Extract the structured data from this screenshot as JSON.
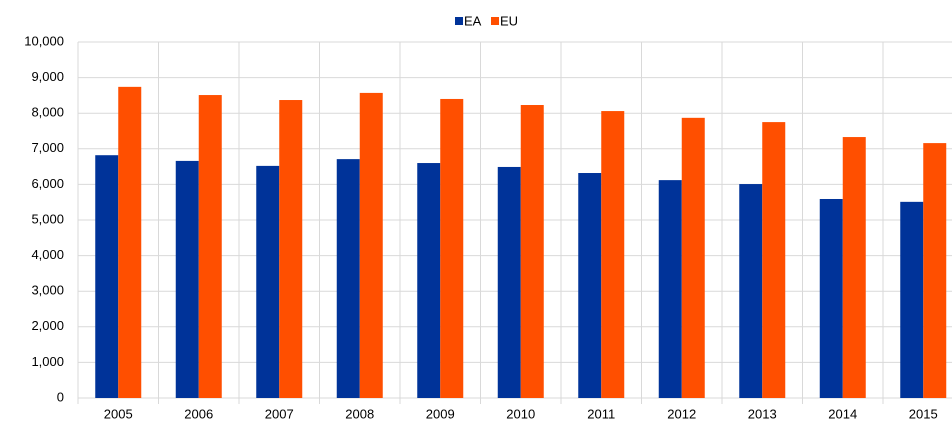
{
  "chart_data": {
    "type": "bar",
    "categories": [
      "2005",
      "2006",
      "2007",
      "2008",
      "2009",
      "2010",
      "2011",
      "2012",
      "2013",
      "2014",
      "2015"
    ],
    "series": [
      {
        "name": "EA",
        "color": "#003399",
        "values": [
          6820,
          6660,
          6520,
          6710,
          6600,
          6490,
          6320,
          6120,
          6010,
          5590,
          5510
        ]
      },
      {
        "name": "EU",
        "color": "#ff4f00",
        "values": [
          8740,
          8510,
          8370,
          8570,
          8400,
          8230,
          8060,
          7870,
          7750,
          7330,
          7160
        ]
      }
    ],
    "ylim": [
      0,
      10000
    ],
    "yticks": [
      0,
      {
        "value": 1000,
        "label": "1,000"
      },
      {
        "value": 2000,
        "label": "2,000"
      },
      {
        "value": 3000,
        "label": "3,000"
      },
      {
        "value": 4000,
        "label": "4,000"
      },
      {
        "value": 5000,
        "label": "5,000"
      },
      {
        "value": 6000,
        "label": "6,000"
      },
      {
        "value": 7000,
        "label": "7,000"
      },
      {
        "value": 8000,
        "label": "8,000"
      },
      {
        "value": 9000,
        "label": "9,000"
      },
      {
        "value": 10000,
        "label": "10,000"
      }
    ],
    "grid": true,
    "legend": "top"
  }
}
